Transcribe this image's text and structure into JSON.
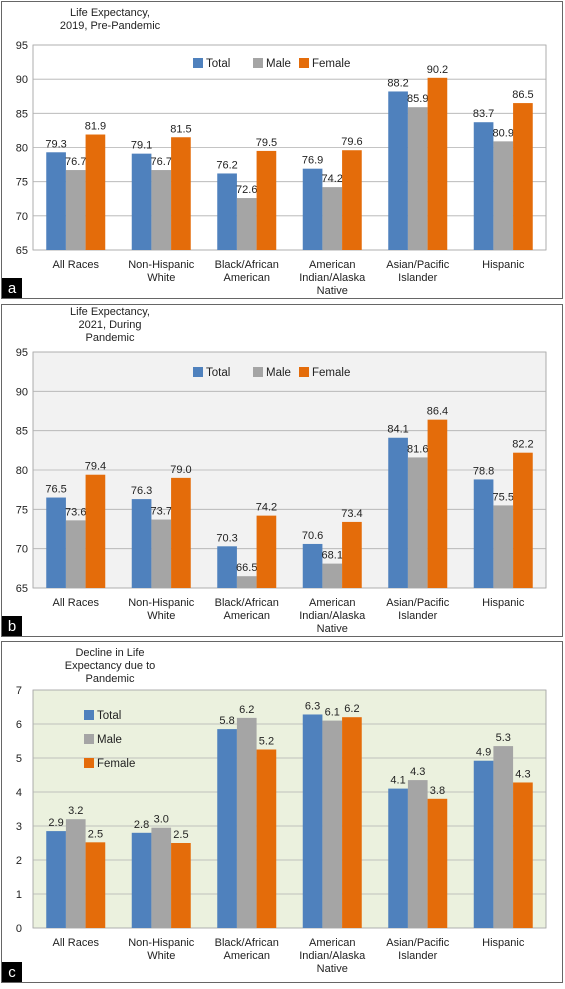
{
  "panels": [
    {
      "letter": "a"
    },
    {
      "letter": "b"
    },
    {
      "letter": "c"
    }
  ],
  "colors": {
    "total": "#4F81BD",
    "male": "#A5A5A5",
    "female": "#E46C0A",
    "panel_bg_a": "#ffffff",
    "panel_bg_b": "#F2F2F2",
    "panel_bg_c": "#EBF1DE"
  },
  "chart_data": [
    {
      "type": "bar",
      "title_lines": [
        "Life Expectancy,",
        "2019, Pre-Pandemic"
      ],
      "categories": [
        [
          "All Races"
        ],
        [
          "Non-Hispanic",
          "White"
        ],
        [
          "Black/African",
          "American"
        ],
        [
          "American",
          "Indian/Alaska",
          "Native"
        ],
        [
          "Asian/Pacific",
          "Islander"
        ],
        [
          "Hispanic"
        ]
      ],
      "series": [
        {
          "name": "Total",
          "values": [
            79.3,
            79.1,
            76.2,
            76.9,
            88.2,
            83.7
          ]
        },
        {
          "name": "Male",
          "values": [
            76.7,
            76.7,
            72.6,
            74.2,
            85.9,
            80.9
          ]
        },
        {
          "name": "Female",
          "values": [
            81.9,
            81.5,
            79.5,
            79.6,
            90.2,
            86.5
          ]
        }
      ],
      "data_labels": [
        [
          "79.3",
          "79.1",
          "76.2",
          "76.9",
          "88.2",
          "83.7"
        ],
        [
          "76.7",
          "76.7",
          "72.6",
          "74.2",
          "85.9",
          "80.9"
        ],
        [
          "81.9",
          "81.5",
          "79.5",
          "79.6",
          "90.2",
          "86.5"
        ]
      ],
      "ylim": [
        65,
        95
      ],
      "yticks": [
        65,
        70,
        75,
        80,
        85,
        90,
        95
      ],
      "grid": true,
      "legend": "top-center, horizontal"
    },
    {
      "type": "bar",
      "title_lines": [
        "Life Expectancy,",
        "2021, During",
        "Pandemic"
      ],
      "categories": [
        [
          "All Races"
        ],
        [
          "Non-Hispanic",
          "White"
        ],
        [
          "Black/African",
          "American"
        ],
        [
          "American",
          "Indian/Alaska",
          "Native"
        ],
        [
          "Asian/Pacific",
          "Islander"
        ],
        [
          "Hispanic"
        ]
      ],
      "series": [
        {
          "name": "Total",
          "values": [
            76.5,
            76.3,
            70.3,
            70.6,
            84.1,
            78.8
          ]
        },
        {
          "name": "Male",
          "values": [
            73.6,
            73.7,
            66.5,
            68.1,
            81.6,
            75.5
          ]
        },
        {
          "name": "Female",
          "values": [
            79.4,
            79.0,
            74.2,
            73.4,
            86.4,
            82.2
          ]
        }
      ],
      "data_labels": [
        [
          "76.5",
          "76.3",
          "70.3",
          "70.6",
          "84.1",
          "78.8"
        ],
        [
          "73.6",
          "73.7",
          "66.5",
          "68.1",
          "81.6",
          "75.5"
        ],
        [
          "79.4",
          "79.0",
          "74.2",
          "73.4",
          "86.4",
          "82.2"
        ]
      ],
      "ylim": [
        65,
        95
      ],
      "yticks": [
        65,
        70,
        75,
        80,
        85,
        90,
        95
      ],
      "grid": true,
      "legend": "top-center, horizontal"
    },
    {
      "type": "bar",
      "title_lines": [
        "Decline in Life",
        "Expectancy due to",
        "Pandemic"
      ],
      "categories": [
        [
          "All Races"
        ],
        [
          "Non-Hispanic",
          "White"
        ],
        [
          "Black/African",
          "American"
        ],
        [
          "American",
          "Indian/Alaska",
          "Native"
        ],
        [
          "Asian/Pacific",
          "Islander"
        ],
        [
          "Hispanic"
        ]
      ],
      "series": [
        {
          "name": "Total",
          "values": [
            2.85,
            2.8,
            5.85,
            6.28,
            4.1,
            4.92
          ]
        },
        {
          "name": "Male",
          "values": [
            3.2,
            2.95,
            6.18,
            6.1,
            4.35,
            5.35
          ]
        },
        {
          "name": "Female",
          "values": [
            2.52,
            2.5,
            5.25,
            6.2,
            3.8,
            4.28
          ]
        }
      ],
      "data_labels": [
        [
          "2.9",
          "2.8",
          "5.8",
          "6.3",
          "4.1",
          "4.9"
        ],
        [
          "3.2",
          "3.0",
          "6.2",
          "6.1",
          "4.3",
          "5.3"
        ],
        [
          "2.5",
          "2.5",
          "5.2",
          "6.2",
          "3.8",
          "4.3"
        ]
      ],
      "ylim": [
        0,
        7
      ],
      "yticks": [
        0,
        1,
        2,
        3,
        4,
        5,
        6,
        7
      ],
      "grid": true,
      "legend": "top-left, vertical"
    }
  ]
}
